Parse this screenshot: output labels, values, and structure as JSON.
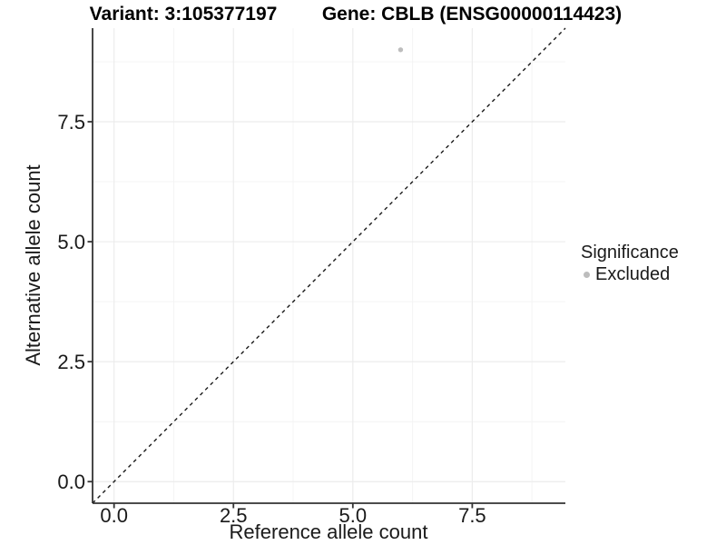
{
  "header": {
    "variant_title": "Variant: 3:105377197",
    "gene_title": "Gene: CBLB (ENSG00000114423)"
  },
  "legend": {
    "title": "Significance",
    "items": [
      {
        "label": "Excluded",
        "color": "#bdbdbd"
      }
    ]
  },
  "chart_data": {
    "type": "scatter",
    "title": "Variant: 3:105377197   Gene: CBLB (ENSG00000114423)",
    "xlabel": "Reference allele count",
    "ylabel": "Alternative allele count",
    "xlim": [
      -0.45,
      9.45
    ],
    "ylim": [
      -0.45,
      9.45
    ],
    "xticks": [
      0.0,
      2.5,
      5.0,
      7.5
    ],
    "yticks": [
      0.0,
      2.5,
      5.0,
      7.5
    ],
    "xtick_labels": [
      "0.0",
      "2.5",
      "5.0",
      "7.5"
    ],
    "ytick_labels": [
      "0.0",
      "2.5",
      "5.0",
      "7.5"
    ],
    "grid": {
      "major": true,
      "minor": true
    },
    "legend_position": "right",
    "series": [
      {
        "name": "Excluded",
        "color": "#bdbdbd",
        "points": [
          {
            "x": 6,
            "y": 9
          }
        ]
      }
    ],
    "identity_line": {
      "style": "dashed",
      "from": [
        -0.45,
        -0.45
      ],
      "to": [
        9.45,
        9.45
      ],
      "color": "#1a1a1a"
    },
    "colors": {
      "axis_line": "#333333",
      "tick_mark": "#333333",
      "tick_text": "#1a1a1a",
      "grid_major": "#ececec",
      "grid_minor": "#f4f4f4",
      "panel_background": "#ffffff"
    }
  }
}
